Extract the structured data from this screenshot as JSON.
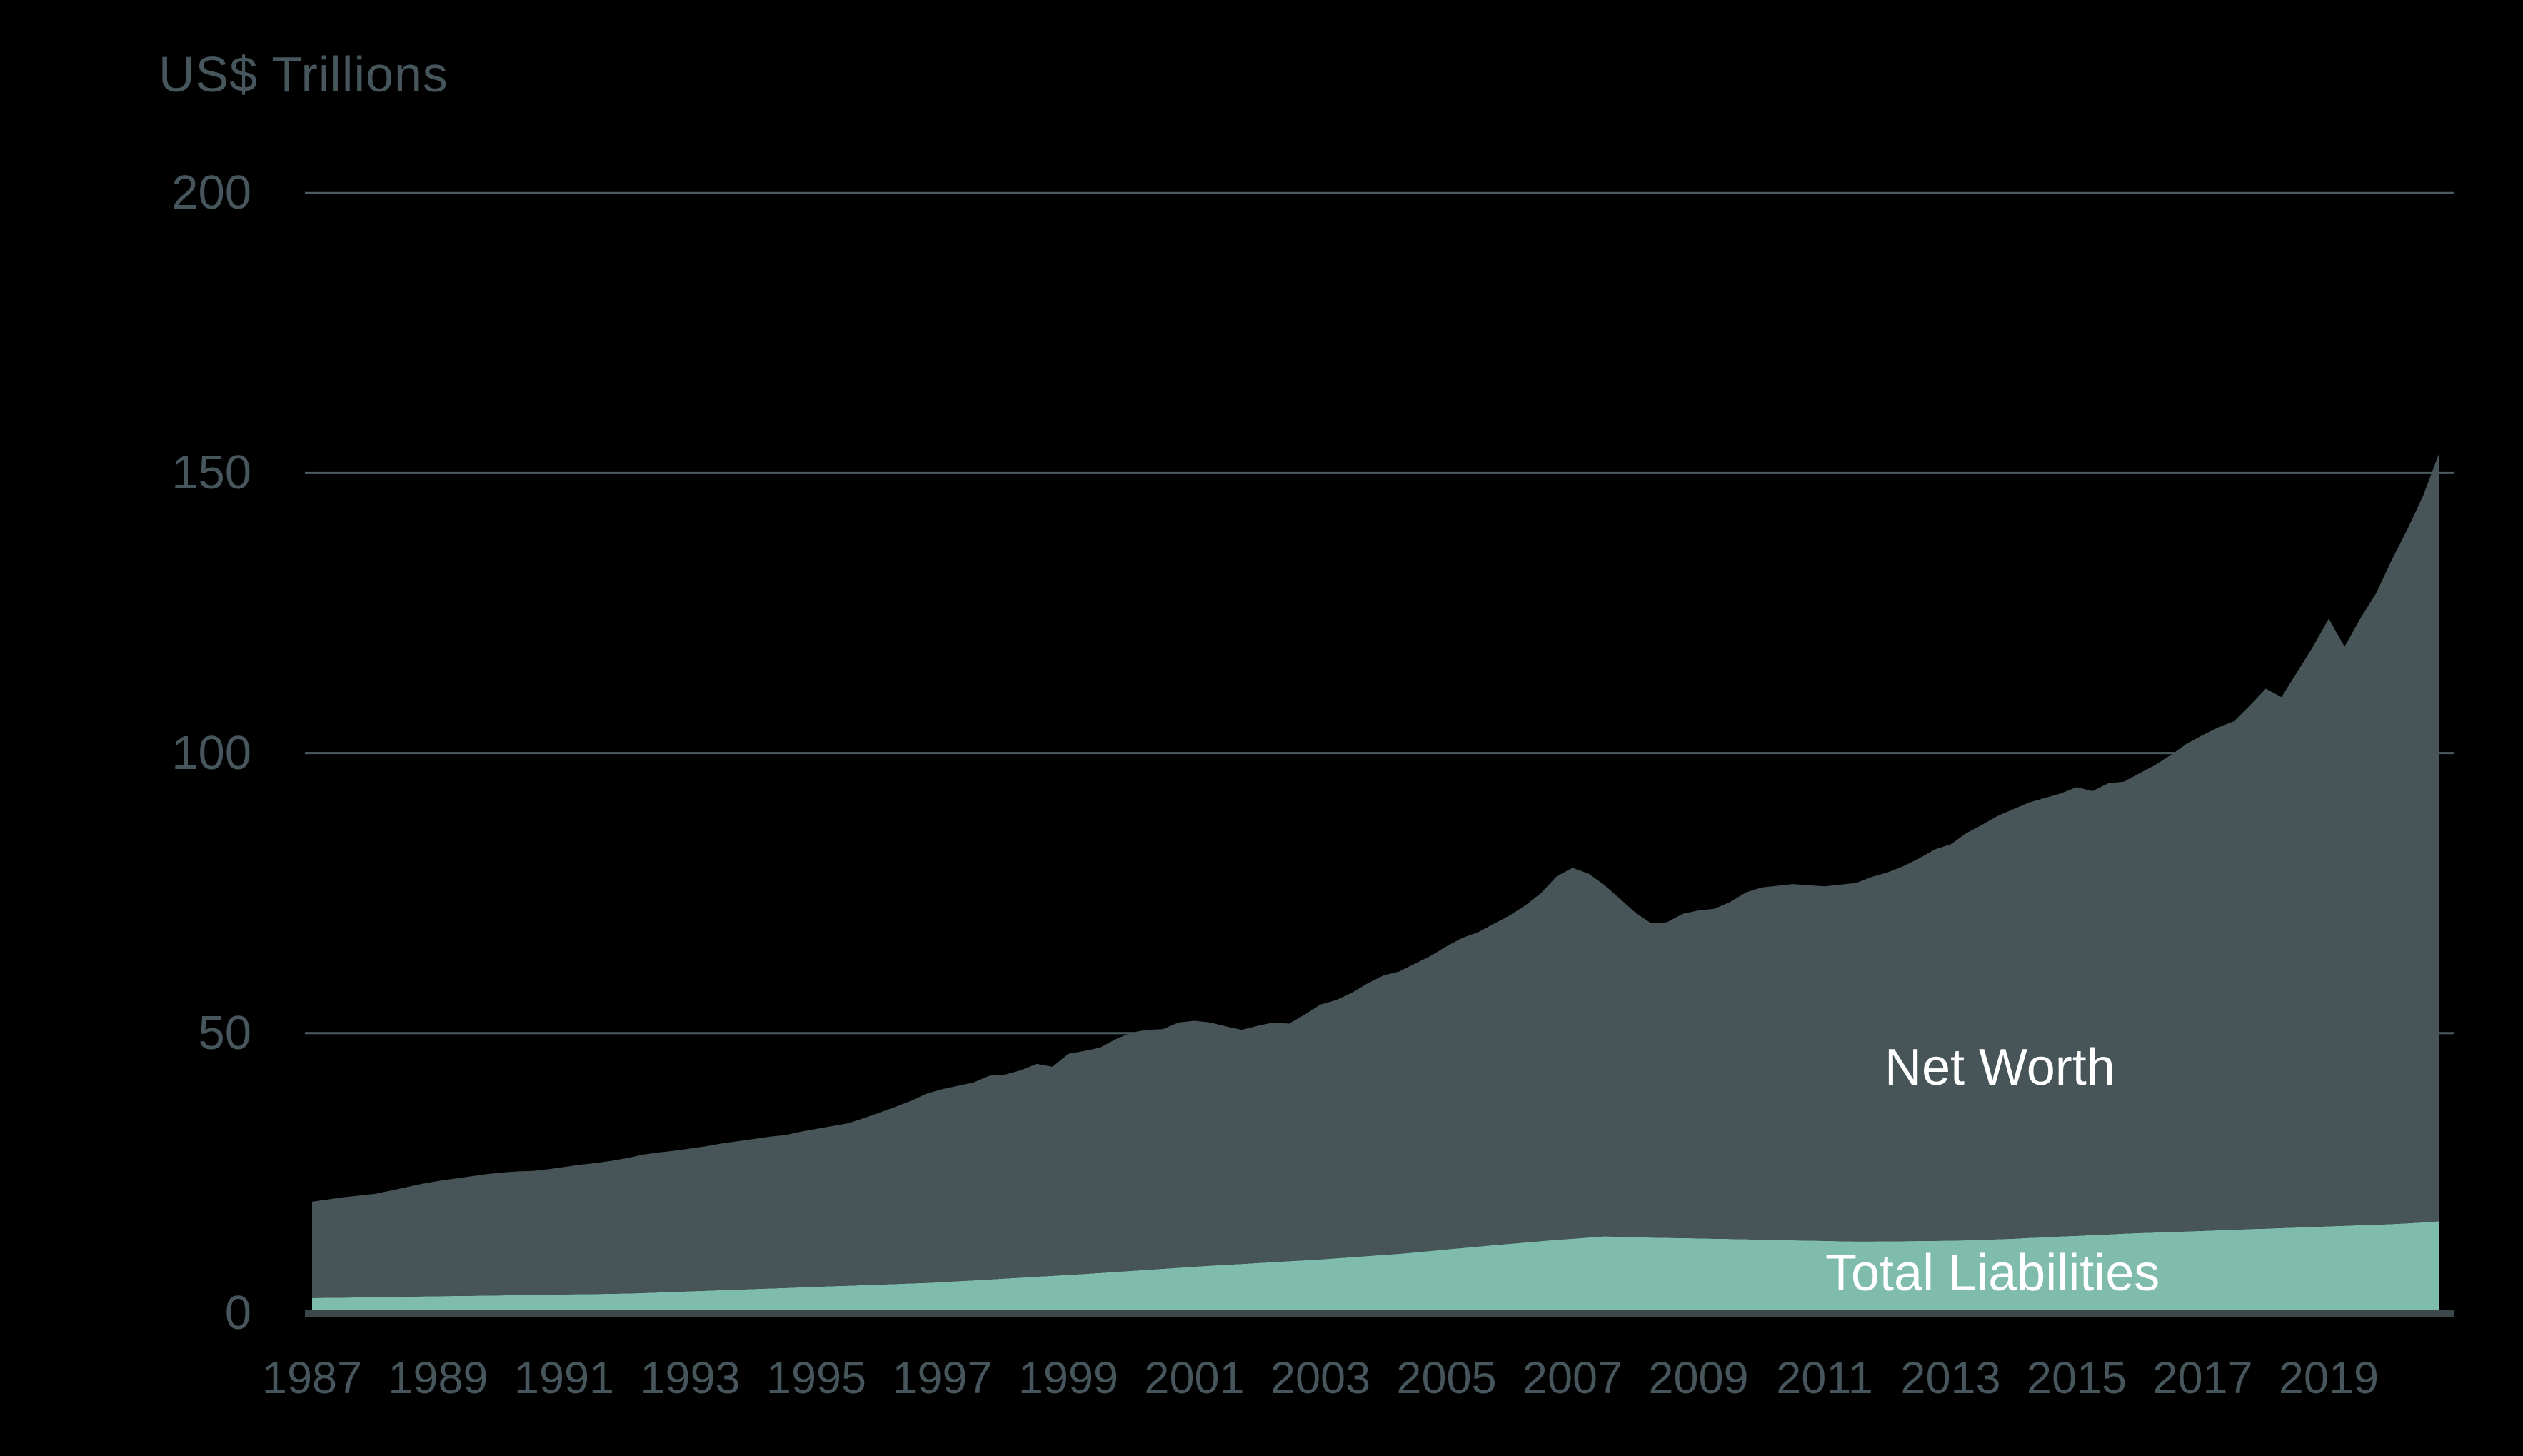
{
  "page": {
    "background": "#000000"
  },
  "chart_data": {
    "type": "area",
    "stacked": true,
    "unit_label": "US$ Trillions",
    "x_start": 1987,
    "x_step": 0.25,
    "x_end": 2020.75,
    "points": 136,
    "x_unit": "year (quarterly)",
    "y_unit": "US$ Trillions",
    "ylim": [
      0,
      200
    ],
    "grid": "horizontal only",
    "legend_position": "labels inside plot area",
    "y_axis": {
      "ticks": [
        0,
        50,
        100,
        150,
        200
      ]
    },
    "x_axis": {
      "tick_years": [
        1987,
        1989,
        1991,
        1993,
        1995,
        1997,
        1999,
        2001,
        2003,
        2005,
        2007,
        2009,
        2011,
        2013,
        2015,
        2017,
        2019
      ]
    },
    "colors": {
      "background": "#000000",
      "gridline": "#4d5c60",
      "axis_line": "#3a474b",
      "tick_text": "#46565c",
      "label_text": "#ffffff"
    },
    "annotations": {
      "net_worth": {
        "text": "Net Worth",
        "color": "#ffffff"
      },
      "total_liabilities": {
        "text": "Total Liabilities",
        "color": "#ffffff"
      }
    },
    "series": [
      {
        "name": "Total Liabilities",
        "color": "#7fbcab",
        "values": [
          2.7,
          2.74,
          2.78,
          2.82,
          2.86,
          2.9,
          2.94,
          2.98,
          3.02,
          3.06,
          3.1,
          3.14,
          3.18,
          3.22,
          3.26,
          3.3,
          3.34,
          3.38,
          3.42,
          3.46,
          3.52,
          3.6,
          3.7,
          3.8,
          3.9,
          4.0,
          4.1,
          4.2,
          4.3,
          4.4,
          4.5,
          4.6,
          4.7,
          4.8,
          4.9,
          5.0,
          5.1,
          5.2,
          5.3,
          5.4,
          5.55,
          5.7,
          5.85,
          6.0,
          6.18,
          6.35,
          6.51,
          6.67,
          6.83,
          7.0,
          7.17,
          7.36,
          7.55,
          7.73,
          7.92,
          8.11,
          8.3,
          8.48,
          8.63,
          8.79,
          8.95,
          9.12,
          9.28,
          9.44,
          9.6,
          9.8,
          10.0,
          10.2,
          10.4,
          10.6,
          10.85,
          11.1,
          11.38,
          11.64,
          11.9,
          12.14,
          12.38,
          12.62,
          12.86,
          13.1,
          13.3,
          13.5,
          13.7,
          13.65,
          13.55,
          13.5,
          13.45,
          13.4,
          13.35,
          13.3,
          13.25,
          13.2,
          13.1,
          13.05,
          13.0,
          12.95,
          12.9,
          12.85,
          12.8,
          12.8,
          12.82,
          12.85,
          12.87,
          12.9,
          12.95,
          13.0,
          13.1,
          13.2,
          13.3,
          13.45,
          13.55,
          13.7,
          13.8,
          13.95,
          14.05,
          14.2,
          14.3,
          14.4,
          14.5,
          14.6,
          14.7,
          14.8,
          14.9,
          15.0,
          15.1,
          15.2,
          15.3,
          15.4,
          15.5,
          15.6,
          15.7,
          15.8,
          15.9,
          16.05,
          16.2,
          16.4
        ]
      },
      {
        "name": "Net Worth",
        "color": "#475559",
        "values": [
          17.2,
          17.56,
          17.92,
          18.18,
          18.44,
          19.0,
          19.56,
          20.12,
          20.58,
          20.94,
          21.3,
          21.66,
          21.92,
          22.08,
          22.14,
          22.4,
          22.76,
          23.12,
          23.38,
          23.74,
          24.18,
          24.7,
          25.0,
          25.2,
          25.5,
          25.8,
          26.2,
          26.5,
          26.8,
          27.1,
          27.3,
          27.8,
          28.2,
          28.6,
          29.0,
          29.8,
          30.7,
          31.6,
          32.6,
          33.8,
          34.45,
          34.9,
          35.35,
          36.4,
          36.42,
          37.05,
          37.99,
          37.33,
          39.47,
          39.8,
          40.23,
          41.54,
          42.55,
          42.87,
          42.78,
          43.79,
          43.9,
          43.42,
          42.57,
          41.81,
          42.35,
          42.78,
          42.42,
          43.86,
          45.5,
          46.1,
          47.2,
          48.7,
          49.9,
          50.4,
          51.55,
          52.7,
          54.12,
          55.36,
          56.1,
          57.36,
          58.62,
          60.18,
          62.14,
          64.9,
          66.2,
          65.0,
          62.8,
          60.35,
          57.95,
          56.1,
          56.35,
          57.9,
          58.55,
          58.9,
          60.15,
          61.9,
          62.9,
          63.25,
          63.6,
          63.45,
          63.3,
          63.65,
          64.0,
          65.1,
          65.88,
          66.95,
          68.33,
          69.9,
          70.75,
          72.7,
          74.1,
          75.6,
          76.7,
          77.75,
          78.45,
          79.1,
          80.1,
          79.25,
          80.55,
          80.7,
          82.1,
          83.5,
          85.2,
          87.1,
          88.5,
          89.8,
          90.8,
          93.5,
          96.4,
          94.8,
          99.2,
          103.6,
          108.5,
          103.4,
          108.3,
          112.7,
          118.6,
          123.95,
          129.8,
          137.1
        ]
      }
    ]
  }
}
